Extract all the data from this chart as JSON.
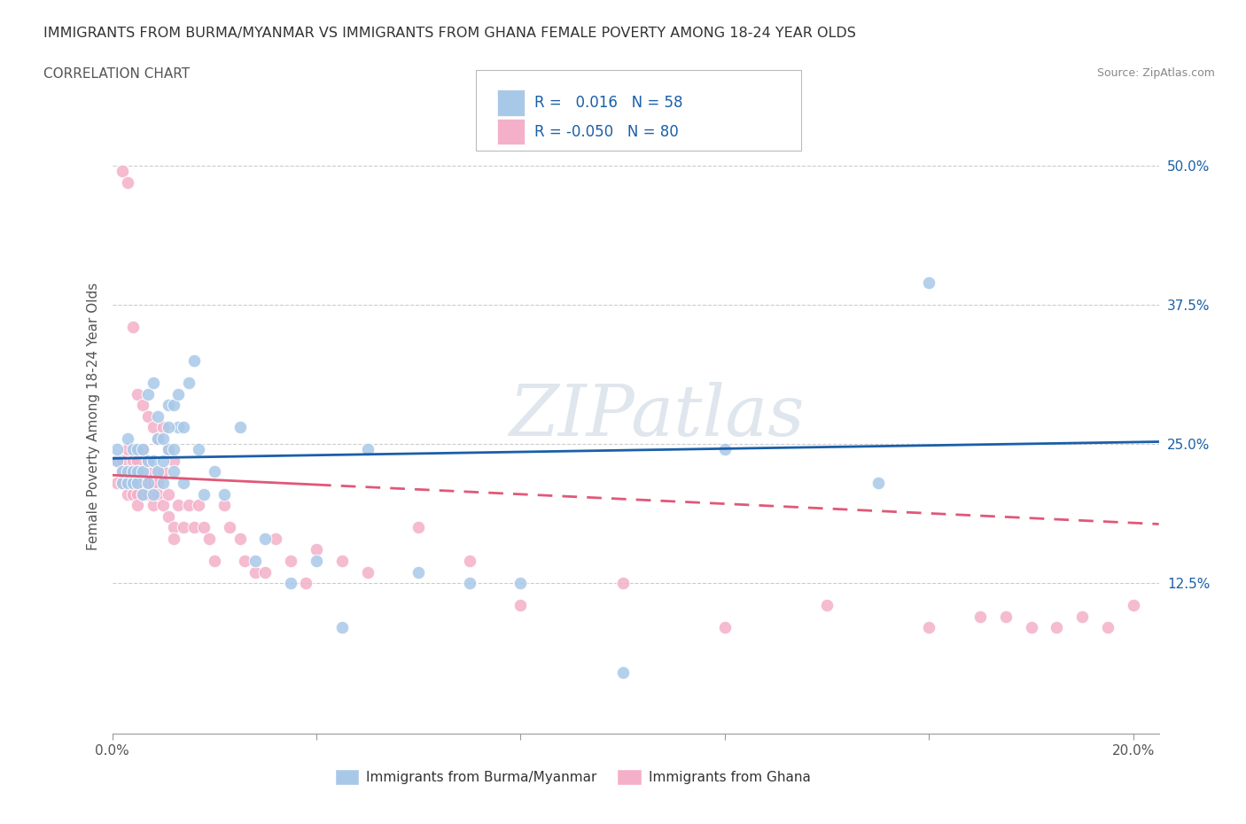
{
  "title": "IMMIGRANTS FROM BURMA/MYANMAR VS IMMIGRANTS FROM GHANA FEMALE POVERTY AMONG 18-24 YEAR OLDS",
  "subtitle": "CORRELATION CHART",
  "source": "Source: ZipAtlas.com",
  "ylabel": "Female Poverty Among 18-24 Year Olds",
  "xlim": [
    0.0,
    0.205
  ],
  "ylim": [
    -0.01,
    0.56
  ],
  "yticks": [
    0.125,
    0.25,
    0.375,
    0.5
  ],
  "ytick_labels": [
    "12.5%",
    "25.0%",
    "37.5%",
    "50.0%"
  ],
  "xtick_left_label": "0.0%",
  "xtick_right_label": "20.0%",
  "color_blue": "#a8c8e8",
  "color_pink": "#f4b0c8",
  "line_color_blue": "#1a5fa8",
  "line_color_pink": "#e05878",
  "R_blue": 0.016,
  "N_blue": 58,
  "R_pink": -0.05,
  "N_pink": 80,
  "legend_label_blue": "Immigrants from Burma/Myanmar",
  "legend_label_pink": "Immigrants from Ghana",
  "watermark": "ZIPatlas",
  "blue_x": [
    0.001,
    0.001,
    0.002,
    0.002,
    0.003,
    0.003,
    0.003,
    0.004,
    0.004,
    0.004,
    0.005,
    0.005,
    0.005,
    0.006,
    0.006,
    0.006,
    0.007,
    0.007,
    0.008,
    0.008,
    0.009,
    0.009,
    0.01,
    0.01,
    0.011,
    0.011,
    0.012,
    0.012,
    0.013,
    0.014,
    0.015,
    0.016,
    0.017,
    0.018,
    0.02,
    0.022,
    0.025,
    0.028,
    0.03,
    0.035,
    0.04,
    0.045,
    0.05,
    0.06,
    0.07,
    0.08,
    0.1,
    0.12,
    0.15,
    0.16,
    0.007,
    0.008,
    0.009,
    0.01,
    0.011,
    0.012,
    0.013,
    0.014
  ],
  "blue_y": [
    0.235,
    0.245,
    0.215,
    0.225,
    0.215,
    0.225,
    0.255,
    0.215,
    0.225,
    0.245,
    0.215,
    0.225,
    0.245,
    0.205,
    0.225,
    0.245,
    0.215,
    0.235,
    0.205,
    0.235,
    0.225,
    0.255,
    0.215,
    0.235,
    0.245,
    0.285,
    0.225,
    0.245,
    0.265,
    0.215,
    0.305,
    0.325,
    0.245,
    0.205,
    0.225,
    0.205,
    0.265,
    0.145,
    0.165,
    0.125,
    0.145,
    0.085,
    0.245,
    0.135,
    0.125,
    0.125,
    0.045,
    0.245,
    0.215,
    0.395,
    0.295,
    0.305,
    0.275,
    0.255,
    0.265,
    0.285,
    0.295,
    0.265
  ],
  "pink_x": [
    0.001,
    0.001,
    0.002,
    0.002,
    0.002,
    0.003,
    0.003,
    0.003,
    0.003,
    0.004,
    0.004,
    0.004,
    0.004,
    0.005,
    0.005,
    0.005,
    0.005,
    0.006,
    0.006,
    0.006,
    0.006,
    0.007,
    0.007,
    0.007,
    0.008,
    0.008,
    0.008,
    0.009,
    0.009,
    0.01,
    0.01,
    0.011,
    0.011,
    0.012,
    0.012,
    0.013,
    0.014,
    0.015,
    0.016,
    0.017,
    0.018,
    0.019,
    0.02,
    0.022,
    0.023,
    0.025,
    0.026,
    0.028,
    0.03,
    0.032,
    0.035,
    0.038,
    0.04,
    0.045,
    0.05,
    0.06,
    0.07,
    0.08,
    0.1,
    0.12,
    0.14,
    0.16,
    0.17,
    0.175,
    0.18,
    0.185,
    0.19,
    0.195,
    0.2,
    0.002,
    0.003,
    0.004,
    0.005,
    0.006,
    0.007,
    0.008,
    0.009,
    0.01,
    0.011,
    0.012
  ],
  "pink_y": [
    0.235,
    0.215,
    0.235,
    0.215,
    0.225,
    0.245,
    0.225,
    0.215,
    0.205,
    0.235,
    0.225,
    0.205,
    0.215,
    0.235,
    0.225,
    0.205,
    0.195,
    0.245,
    0.225,
    0.215,
    0.205,
    0.235,
    0.215,
    0.205,
    0.225,
    0.215,
    0.195,
    0.215,
    0.205,
    0.225,
    0.195,
    0.205,
    0.185,
    0.175,
    0.165,
    0.195,
    0.175,
    0.195,
    0.175,
    0.195,
    0.175,
    0.165,
    0.145,
    0.195,
    0.175,
    0.165,
    0.145,
    0.135,
    0.135,
    0.165,
    0.145,
    0.125,
    0.155,
    0.145,
    0.135,
    0.175,
    0.145,
    0.105,
    0.125,
    0.085,
    0.105,
    0.085,
    0.095,
    0.095,
    0.085,
    0.085,
    0.095,
    0.085,
    0.105,
    0.495,
    0.485,
    0.355,
    0.295,
    0.285,
    0.275,
    0.265,
    0.255,
    0.265,
    0.245,
    0.235
  ],
  "blue_line_x0": 0.0,
  "blue_line_x1": 0.205,
  "blue_line_y0": 0.237,
  "blue_line_y1": 0.252,
  "pink_line_x0": 0.0,
  "pink_line_x1": 0.205,
  "pink_line_y0": 0.222,
  "pink_line_y1": 0.178
}
